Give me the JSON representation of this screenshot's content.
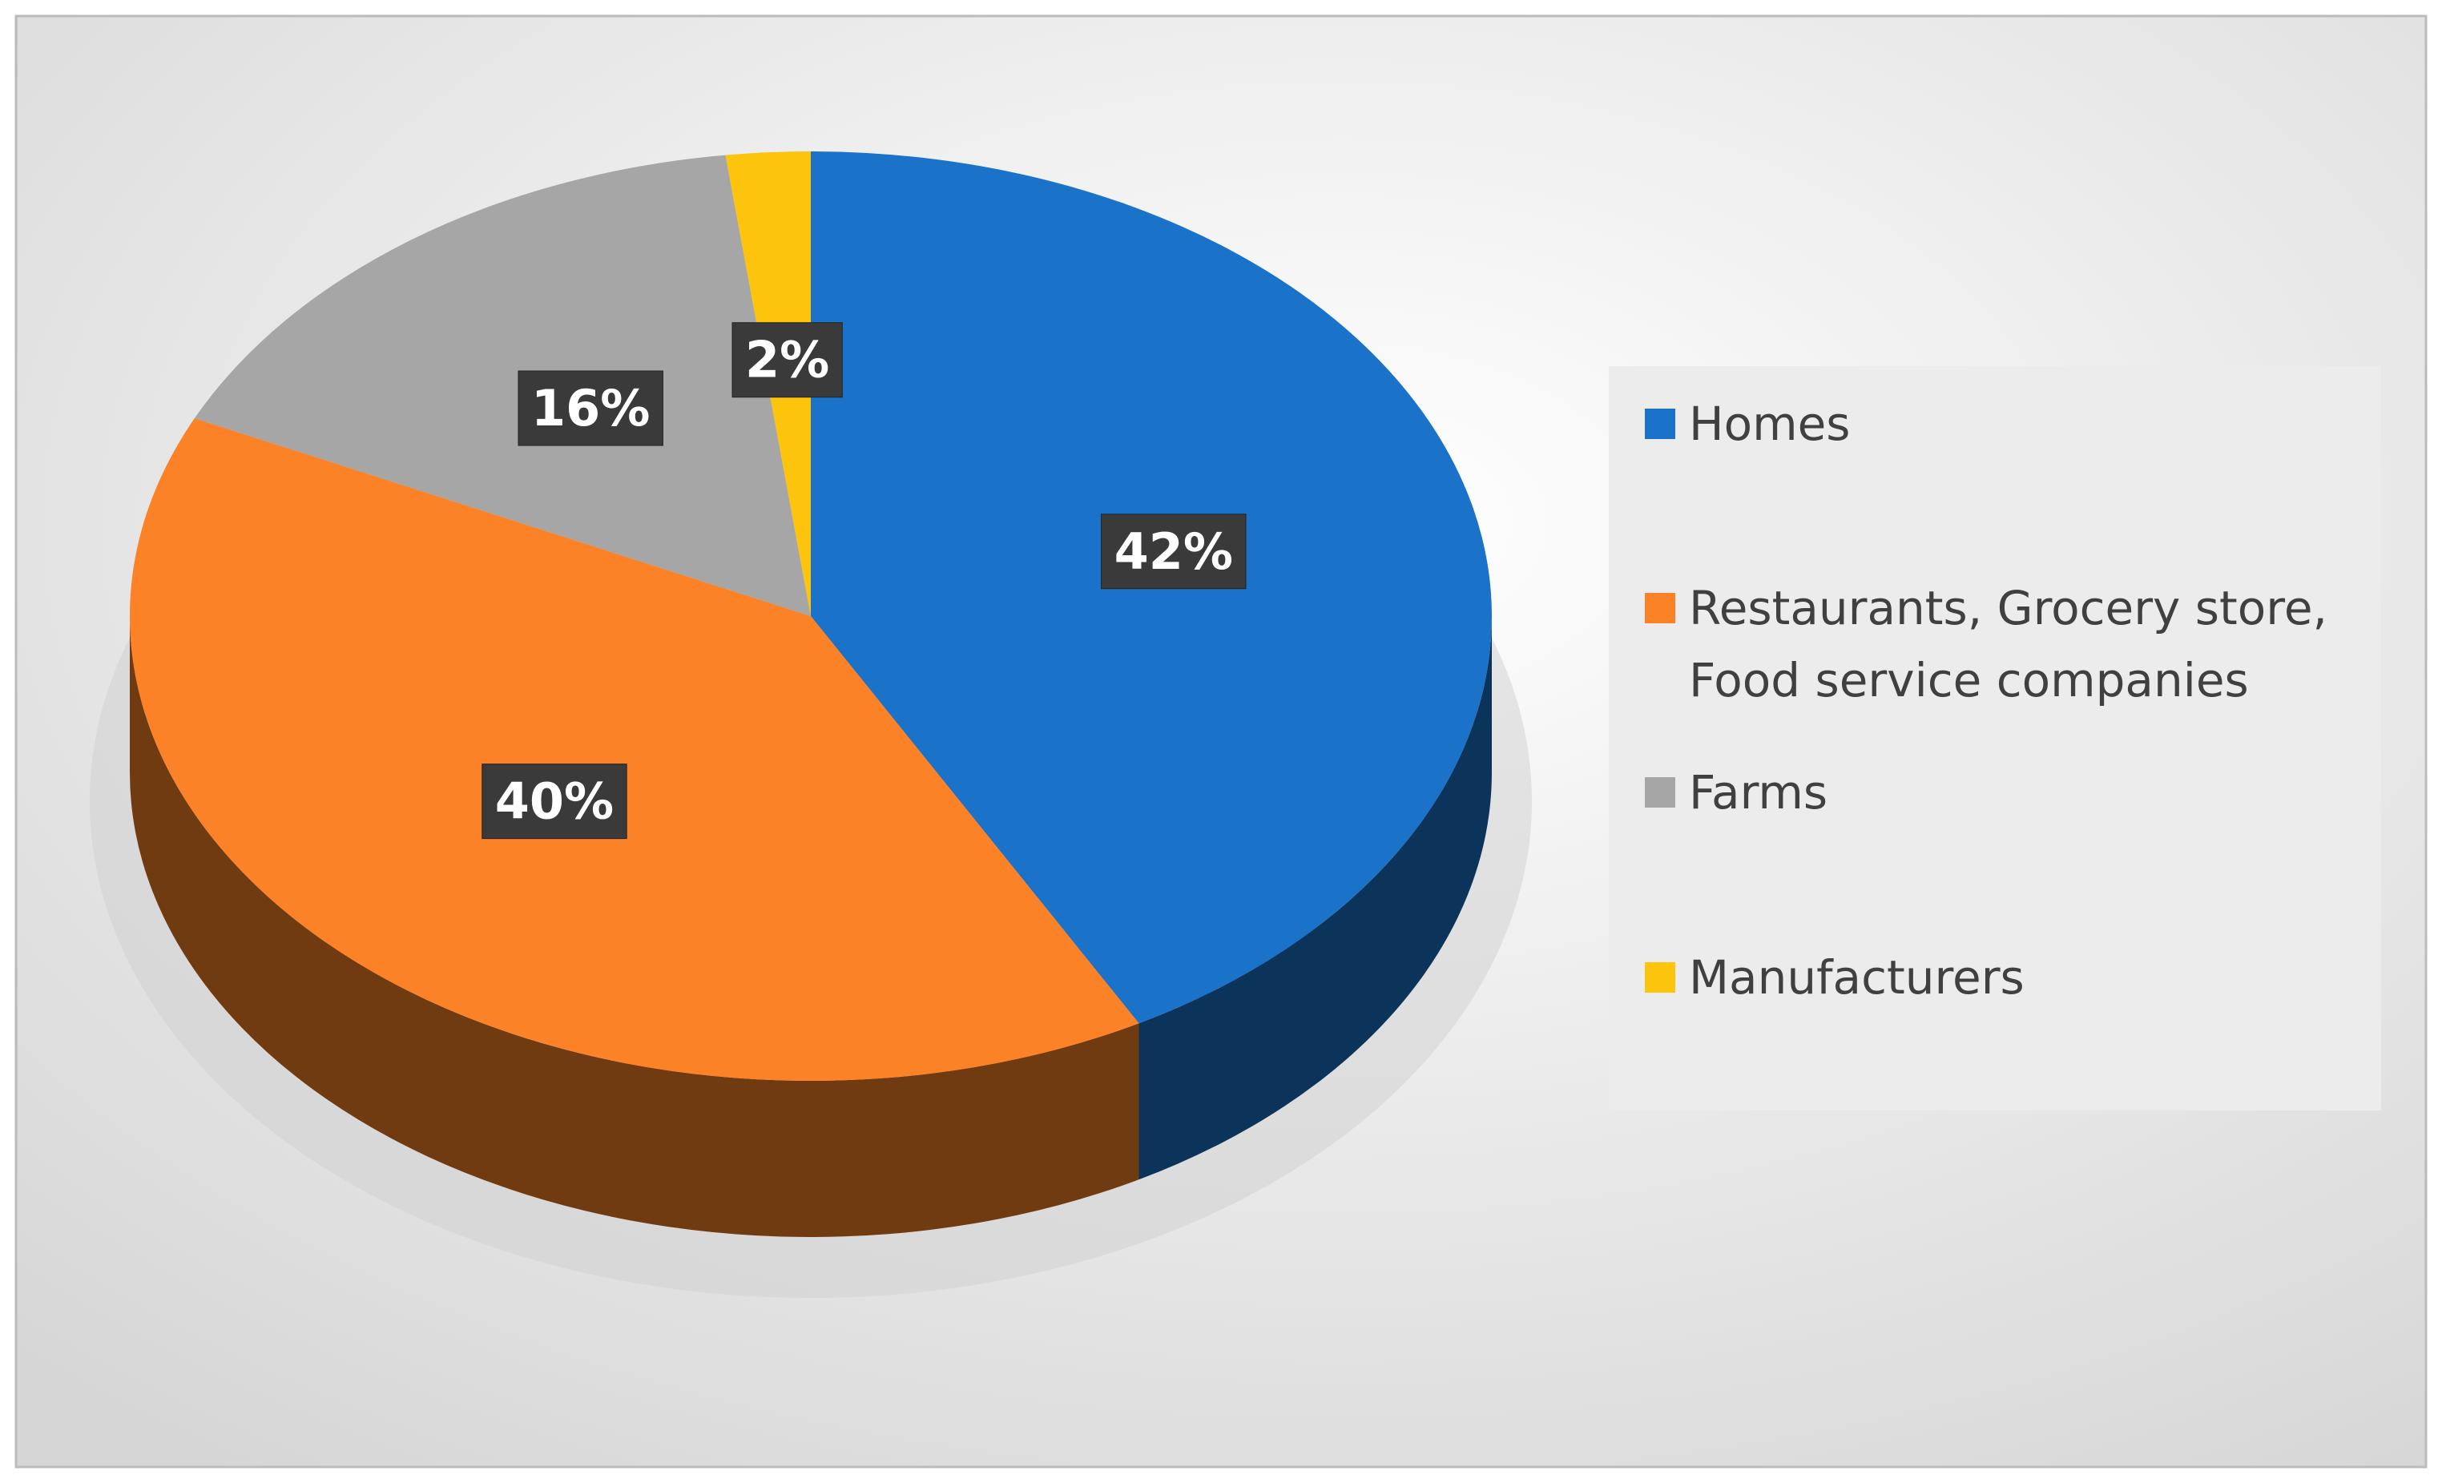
{
  "chart_data": {
    "type": "pie",
    "categories": [
      "Homes",
      "Restaurants, Grocery store, Food service companies",
      "Farms",
      "Manufacturers"
    ],
    "values": [
      42,
      40,
      16,
      2
    ],
    "value_labels": [
      "42%",
      "40%",
      "16%",
      "2%"
    ],
    "colors": [
      "#1a73c9",
      "#fb8226",
      "#a6a6a6",
      "#fcc40c"
    ],
    "legend": "right"
  }
}
